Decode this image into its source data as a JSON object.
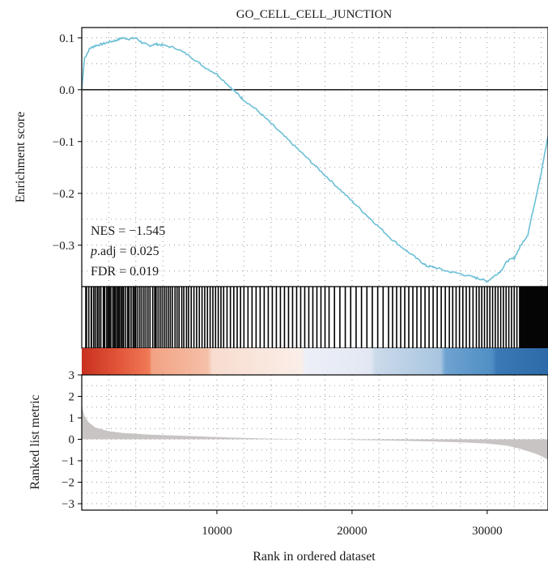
{
  "chart_data": {
    "type": "line",
    "title": "GO_CELL_CELL_JUNCTION",
    "xlabel": "Rank in ordered dataset",
    "xlim": [
      0,
      34500
    ],
    "x_ticks": [
      10000,
      20000,
      30000
    ],
    "x_tick_labels": [
      "10000",
      "20000",
      "30000"
    ],
    "grid": true,
    "panels": {
      "enrichment": {
        "ylabel": "Enrichment score",
        "ylim": [
          -0.38,
          0.12
        ],
        "y_ticks": [
          0.1,
          0.0,
          -0.1,
          -0.2,
          -0.3
        ],
        "y_tick_labels": [
          "0.1",
          "0.0",
          "−0.1",
          "−0.2",
          "−0.3"
        ],
        "series": [
          {
            "color": "#6bbfd6",
            "x": [
              0,
              200,
              600,
              1000,
              1500,
              2000,
              2500,
              3000,
              3500,
              4000,
              4500,
              5000,
              5500,
              6000,
              7000,
              8000,
              9000,
              10000,
              11000,
              11600,
              12000,
              13000,
              14000,
              15000,
              16000,
              17000,
              18000,
              19000,
              20000,
              21000,
              22000,
              23000,
              24000,
              25000,
              25500,
              26000,
              27000,
              28000,
              29000,
              29500,
              30000,
              30500,
              31000,
              31500,
              32000,
              32500,
              33000,
              33500,
              34000,
              34500
            ],
            "y": [
              0.0,
              0.06,
              0.08,
              0.085,
              0.088,
              0.092,
              0.095,
              0.1,
              0.098,
              0.1,
              0.09,
              0.085,
              0.088,
              0.086,
              0.08,
              0.065,
              0.045,
              0.03,
              0.005,
              -0.01,
              -0.02,
              -0.04,
              -0.065,
              -0.09,
              -0.115,
              -0.14,
              -0.165,
              -0.19,
              -0.215,
              -0.24,
              -0.265,
              -0.29,
              -0.31,
              -0.33,
              -0.34,
              -0.342,
              -0.35,
              -0.355,
              -0.362,
              -0.365,
              -0.37,
              -0.36,
              -0.35,
              -0.33,
              -0.325,
              -0.3,
              -0.28,
              -0.22,
              -0.16,
              -0.09
            ]
          }
        ],
        "baseline": 0.0,
        "annotations": [
          {
            "prefix": "NES = ",
            "value": "−1.545"
          },
          {
            "italic": "p",
            "prefix": ".adj = ",
            "value": "0.025"
          },
          {
            "prefix": "FDR = ",
            "value": "0.019"
          }
        ]
      },
      "hits": {
        "hit_ranks": [
          300,
          350,
          520,
          700,
          720,
          880,
          1000,
          1150,
          1270,
          1400,
          1410,
          1600,
          1700,
          1850,
          1950,
          2050,
          2150,
          2300,
          2400,
          2480,
          2600,
          2700,
          2780,
          2900,
          3000,
          3100,
          3250,
          3400,
          3500,
          3650,
          3800,
          3900,
          4000,
          4150,
          4300,
          4450,
          4600,
          4750,
          4900,
          5050,
          5250,
          5400,
          5500,
          5650,
          5800,
          5950,
          6100,
          6250,
          6400,
          6550,
          6700,
          6900,
          7050,
          7200,
          7400,
          7550,
          7750,
          7900,
          8100,
          8300,
          8500,
          8700,
          8900,
          9100,
          9300,
          9500,
          9700,
          9900,
          10100,
          10300,
          10500,
          10750,
          11000,
          11250,
          11500,
          11750,
          12000,
          12300,
          12600,
          12900,
          13200,
          13500,
          13800,
          14100,
          14400,
          14700,
          15000,
          15300,
          15600,
          15900,
          16200,
          16500,
          16800,
          17100,
          17400,
          17700,
          18000,
          18300,
          18700,
          19100,
          19500,
          19900,
          20300,
          20700,
          21100,
          21500,
          21900,
          22300,
          22700,
          23000,
          23300,
          23600,
          23900,
          24200,
          24500,
          24800,
          25100,
          25400,
          25700,
          26000,
          26300,
          26600,
          26900,
          27200,
          27450,
          27700,
          27950,
          28200,
          28450,
          28700,
          28950,
          29200,
          29400,
          29600,
          29800,
          30000,
          30200,
          30400,
          30600,
          30800,
          31000,
          31200,
          31400,
          31600,
          31800,
          32000,
          32200,
          32400,
          32600
        ],
        "dense_block": [
          32400,
          34500
        ]
      },
      "ranked_metric": {
        "ylabel": "Ranked list metric",
        "ylim": [
          -3.3,
          3.0
        ],
        "y_ticks": [
          3,
          2,
          1,
          0,
          -1,
          -2,
          -3
        ],
        "y_tick_labels": [
          "3",
          "2",
          "1",
          "0",
          "−1",
          "−2",
          "−3"
        ],
        "fill_color": "#c9c4c4",
        "x": [
          0,
          200,
          500,
          1000,
          2000,
          3000,
          5000,
          8000,
          11000,
          14000,
          17000,
          20000,
          23000,
          26000,
          28000,
          30000,
          31500,
          32500,
          33500,
          34000,
          34500
        ],
        "y": [
          1.6,
          1.1,
          0.8,
          0.55,
          0.38,
          0.3,
          0.22,
          0.15,
          0.08,
          0.03,
          0.0,
          -0.03,
          -0.06,
          -0.1,
          -0.14,
          -0.2,
          -0.3,
          -0.45,
          -0.65,
          -0.78,
          -0.95
        ]
      }
    }
  }
}
